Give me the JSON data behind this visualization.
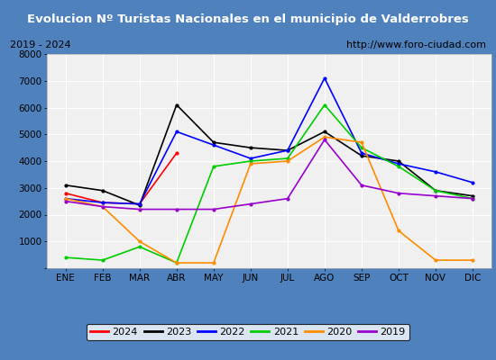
{
  "title": "Evolucion Nº Turistas Nacionales en el municipio de Valderrobres",
  "subtitle_left": "2019 - 2024",
  "subtitle_right": "http://www.foro-ciudad.com",
  "months": [
    "ENE",
    "FEB",
    "MAR",
    "ABR",
    "MAY",
    "JUN",
    "JUL",
    "AGO",
    "SEP",
    "OCT",
    "NOV",
    "DIC"
  ],
  "series": {
    "2024": [
      2800,
      2450,
      2400,
      4300,
      null,
      null,
      null,
      null,
      null,
      null,
      null,
      null
    ],
    "2023": [
      3100,
      2900,
      2350,
      6100,
      4700,
      4500,
      4400,
      5100,
      4200,
      4000,
      2900,
      2700
    ],
    "2022": [
      2600,
      2450,
      2400,
      5100,
      4600,
      4100,
      4400,
      7100,
      4300,
      3900,
      3600,
      3200
    ],
    "2021": [
      400,
      300,
      800,
      200,
      3800,
      4000,
      4100,
      6100,
      4500,
      3800,
      2900,
      2600
    ],
    "2020": [
      2600,
      2300,
      1000,
      200,
      200,
      3900,
      4000,
      4900,
      4700,
      1400,
      300,
      300
    ],
    "2019": [
      2500,
      2300,
      2200,
      2200,
      2200,
      2400,
      2600,
      4800,
      3100,
      2800,
      2700,
      2600
    ]
  },
  "colors": {
    "2024": "#ff0000",
    "2023": "#000000",
    "2022": "#0000ff",
    "2021": "#00cc00",
    "2020": "#ff8c00",
    "2019": "#9900cc"
  },
  "ylim": [
    0,
    8000
  ],
  "yticks": [
    0,
    1000,
    2000,
    3000,
    4000,
    5000,
    6000,
    7000,
    8000
  ],
  "title_bg_color": "#4f81bd",
  "title_text_color": "#ffffff",
  "plot_bg_color": "#f0f0f0",
  "grid_color": "#ffffff",
  "border_color": "#4f81bd",
  "frame_bg_color": "#ffffff"
}
